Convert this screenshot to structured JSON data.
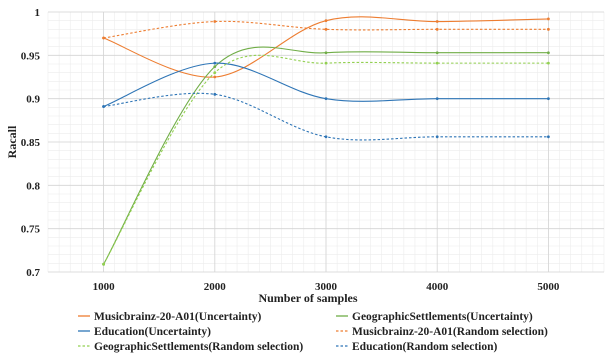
{
  "chart_data": {
    "type": "line",
    "title": "",
    "xlabel": "Number of samples",
    "ylabel": "Racall",
    "x": [
      1000,
      2000,
      3000,
      4000,
      5000
    ],
    "x_ticks": [
      "1000",
      "2000",
      "3000",
      "4000",
      "5000"
    ],
    "xlim": [
      500,
      5500
    ],
    "ylim": [
      0.7,
      1.0
    ],
    "y_ticks": [
      "0.7",
      "0.75",
      "0.8",
      "0.85",
      "0.9",
      "0.95",
      "1"
    ],
    "y_tick_values": [
      0.7,
      0.75,
      0.8,
      0.85,
      0.9,
      0.95,
      1.0
    ],
    "grid": true,
    "legend_position": "bottom",
    "series": [
      {
        "name": "Musicbrainz-20-A01(Uncertainty)",
        "values": [
          0.97,
          0.925,
          0.99,
          0.989,
          0.992
        ],
        "color": "#ED7D31",
        "dash": "solid"
      },
      {
        "name": "GeographicSettlements(Uncertainty)",
        "values": [
          0.709,
          0.937,
          0.953,
          0.953,
          0.953
        ],
        "color": "#70AD47",
        "dash": "solid"
      },
      {
        "name": "Education(Uncertainty)",
        "values": [
          0.891,
          0.941,
          0.9,
          0.9,
          0.9
        ],
        "color": "#2E75B6",
        "dash": "solid"
      },
      {
        "name": "Musicbrainz-20-A01(Random selection)",
        "values": [
          0.97,
          0.989,
          0.98,
          0.98,
          0.98
        ],
        "color": "#ED7D31",
        "dash": "dashed"
      },
      {
        "name": "GeographicSettlements(Random selection)",
        "values": [
          0.709,
          0.93,
          0.941,
          0.941,
          0.941
        ],
        "color": "#92D050",
        "dash": "dashed"
      },
      {
        "name": "Education(Random selection)",
        "values": [
          0.891,
          0.905,
          0.856,
          0.856,
          0.856
        ],
        "color": "#2E75B6",
        "dash": "dashed"
      }
    ]
  }
}
